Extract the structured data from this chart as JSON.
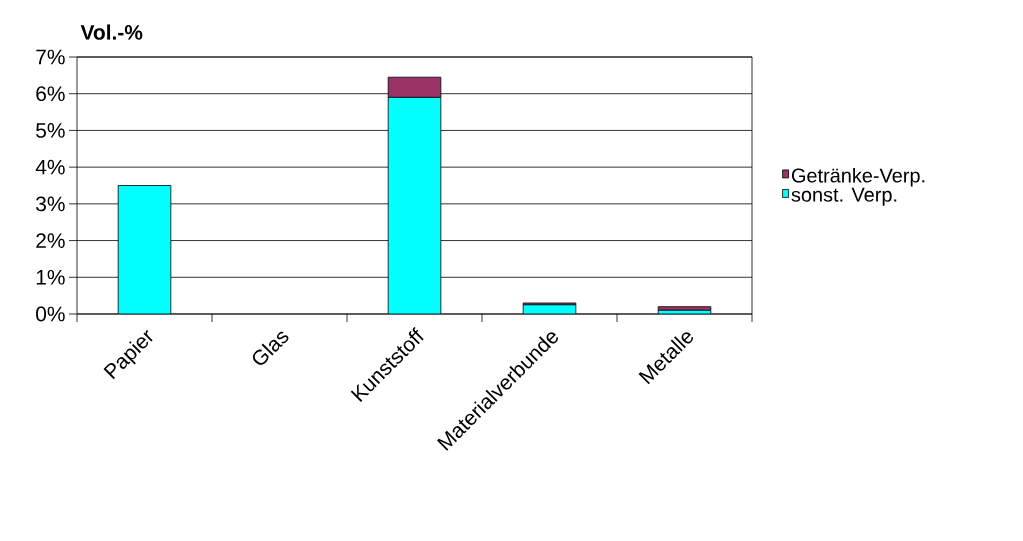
{
  "chart_data": {
    "type": "bar",
    "stacked": true,
    "title": "Vol.-%",
    "categories": [
      "Papier",
      "Glas",
      "Kunststoff",
      "Materialverbunde",
      "Metalle"
    ],
    "series": [
      {
        "name": "sonst. Verp.",
        "color": "#00ffff",
        "values": [
          3.5,
          0,
          5.9,
          0.25,
          0.1
        ]
      },
      {
        "name": "Getränke-Verp.",
        "color": "#993366",
        "values": [
          0,
          0,
          0.55,
          0.05,
          0.1
        ]
      }
    ],
    "ylim": [
      0,
      7
    ],
    "yticks": [
      {
        "value": 0,
        "label": "0%"
      },
      {
        "value": 1,
        "label": "1%"
      },
      {
        "value": 2,
        "label": "2%"
      },
      {
        "value": 3,
        "label": "3%"
      },
      {
        "value": 4,
        "label": "4%"
      },
      {
        "value": 5,
        "label": "5%"
      },
      {
        "value": 6,
        "label": "6%"
      },
      {
        "value": 7,
        "label": "7%"
      }
    ],
    "grid": "y",
    "legend": "right"
  }
}
